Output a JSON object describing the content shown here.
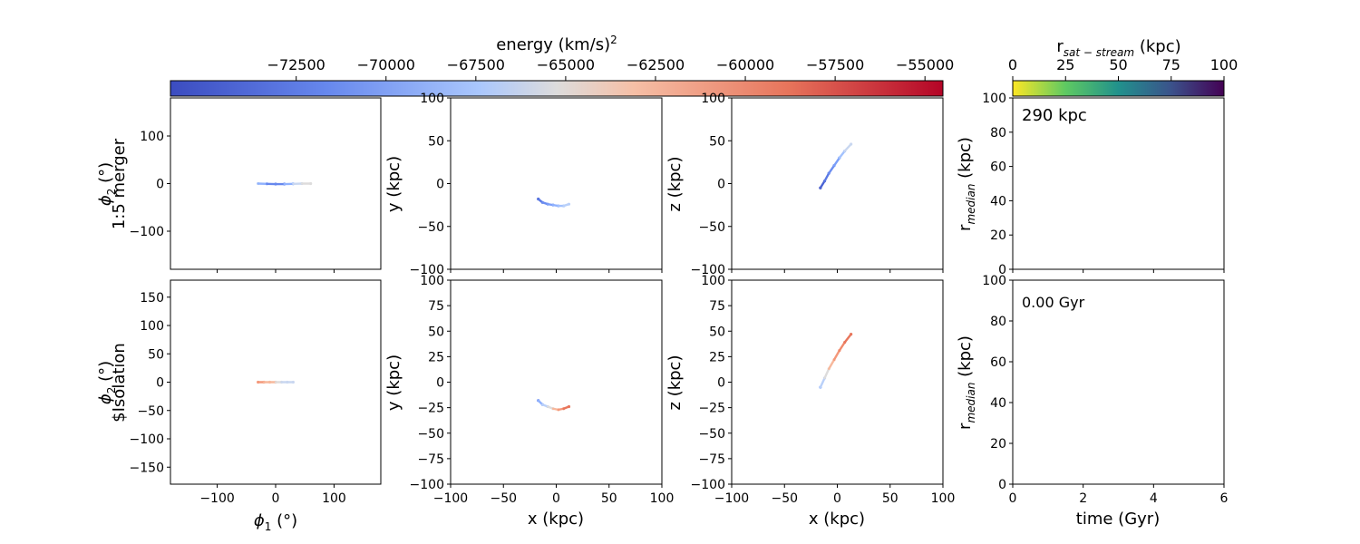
{
  "energy_colorbar": {
    "label": "energy (km/s)",
    "label_sup": "2",
    "range": [
      -76000,
      -54500
    ],
    "ticks": [
      "−72500",
      "−70000",
      "−67500",
      "−65000",
      "−62500",
      "−60000",
      "−57500",
      "−55000"
    ],
    "tick_values": [
      -72500,
      -70000,
      -67500,
      -65000,
      -62500,
      -60000,
      -57500,
      -55000
    ],
    "colormap": "coolwarm"
  },
  "rsat_colorbar": {
    "label_main": "r",
    "label_sub": "sat − stream",
    "label_unit": " (kpc)",
    "range": [
      0,
      100
    ],
    "ticks": [
      "0",
      "25",
      "50",
      "75",
      "100"
    ],
    "tick_values": [
      0,
      25,
      50,
      75,
      100
    ],
    "colormap": "viridis_r"
  },
  "rows": [
    {
      "row_label": "1:5 merger",
      "radius_annotation": "290 kpc",
      "xy_y_ticks": [
        "100",
        "50",
        "0",
        "−50",
        "−100"
      ],
      "xz_y_ticks": [
        "100",
        "50",
        "0",
        "−50",
        "−100"
      ]
    },
    {
      "row_label": "$Isolation",
      "time_annotation": "0.00 Gyr",
      "phi_y_ticks": [
        "150",
        "100",
        "50",
        "0",
        "−50",
        "−100",
        "−150"
      ],
      "xy_y_ticks": [
        "100",
        "75",
        "50",
        "25",
        "0",
        "−25",
        "−50",
        "−75",
        "−100"
      ],
      "xz_y_ticks": [
        "100",
        "75",
        "50",
        "25",
        "0",
        "−25",
        "−50",
        "−75",
        "−100"
      ]
    }
  ],
  "labels": {
    "phi2": "ϕ",
    "phi2_sub": "2",
    "phi2_unit": " (°)",
    "phi1": "ϕ",
    "phi1_sub": "1",
    "phi1_unit": " (°)",
    "y_kpc": "y (kpc)",
    "z_kpc": "z (kpc)",
    "x_kpc": "x (kpc)",
    "rmedian": "r",
    "rmedian_sub": "median",
    "rmedian_unit": " (kpc)",
    "time": "time (Gyr)"
  },
  "axis_ticks": {
    "phi1_x": [
      "−100",
      "0",
      "100"
    ],
    "phi1_x_values": [
      -100,
      0,
      100
    ],
    "phi2_top_y": [
      "100",
      "0",
      "−100"
    ],
    "phi2_top_y_values": [
      100,
      0,
      -100
    ],
    "kpc_x": [
      "−100",
      "−50",
      "0",
      "50",
      "100"
    ],
    "kpc_x_values": [
      -100,
      -50,
      0,
      50,
      100
    ],
    "rmed_y": [
      "100",
      "80",
      "60",
      "40",
      "20",
      "0"
    ],
    "rmed_y_values": [
      100,
      80,
      60,
      40,
      20,
      0
    ],
    "time_x": [
      "0",
      "2",
      "4",
      "6"
    ],
    "time_x_values": [
      0,
      2,
      4,
      6
    ]
  },
  "chart_data": [
    {
      "type": "scatter",
      "panel": "1:5 merger, phi1-phi2",
      "xlim": [
        -180,
        180
      ],
      "ylim": [
        -180,
        180
      ],
      "series": [
        {
          "color_by": "energy",
          "x": [
            -30,
            -15,
            0,
            15,
            30,
            45,
            60
          ],
          "y": [
            0,
            -0.5,
            -1,
            -1,
            -0.5,
            0,
            0
          ],
          "colors": [
            "#c9d7f0",
            "#8fb1fe",
            "#6687ed",
            "#6687ed",
            "#8fb1fe",
            "#c9d7f0",
            "#dddcdc"
          ]
        }
      ]
    },
    {
      "type": "scatter",
      "panel": "1:5 merger, x-y",
      "xlim": [
        -100,
        100
      ],
      "ylim": [
        -100,
        100
      ],
      "series": [
        {
          "color_by": "energy",
          "x": [
            -17,
            -13,
            -8,
            -3,
            2,
            7,
            12
          ],
          "y": [
            -18,
            -22,
            -24,
            -25,
            -26,
            -26,
            -24
          ],
          "colors": [
            "#4a63d3",
            "#5a78e4",
            "#6b8df0",
            "#7b9ff9",
            "#8fb1fe",
            "#a3c2fe",
            "#b9d0f9"
          ]
        }
      ]
    },
    {
      "type": "scatter",
      "panel": "1:5 merger, x-z",
      "xlim": [
        -100,
        100
      ],
      "ylim": [
        -100,
        100
      ],
      "series": [
        {
          "color_by": "energy",
          "x": [
            -16,
            -12,
            -8,
            -3,
            2,
            7,
            13
          ],
          "y": [
            -5,
            3,
            12,
            21,
            30,
            38,
            46
          ],
          "colors": [
            "#3b4cc0",
            "#4a63d3",
            "#5a78e4",
            "#6b8df0",
            "#7b9ff9",
            "#a3c2fe",
            "#c9d7f0"
          ]
        }
      ]
    },
    {
      "type": "line",
      "panel": "1:5 merger, r_median vs time",
      "xlim": [
        0,
        6
      ],
      "ylim": [
        0,
        100
      ],
      "series": []
    },
    {
      "type": "scatter",
      "panel": "$Isolation, phi1-phi2",
      "xlim": [
        -180,
        180
      ],
      "ylim": [
        -180,
        180
      ],
      "series": [
        {
          "color_by": "energy",
          "x": [
            -30,
            -20,
            -10,
            0,
            10,
            20,
            30
          ],
          "y": [
            0,
            0,
            0,
            0,
            0,
            0,
            0
          ],
          "colors": [
            "#f4987a",
            "#f4987a",
            "#f7b89c",
            "#f7b89c",
            "#dddcdc",
            "#c9d7f0",
            "#c9d7f0"
          ]
        }
      ]
    },
    {
      "type": "scatter",
      "panel": "$Isolation, x-y",
      "xlim": [
        -100,
        100
      ],
      "ylim": [
        -100,
        100
      ],
      "series": [
        {
          "color_by": "energy",
          "x": [
            -17,
            -13,
            -8,
            -3,
            2,
            7,
            12
          ],
          "y": [
            -18,
            -22,
            -24,
            -26,
            -27,
            -26,
            -24
          ],
          "colors": [
            "#6b8df0",
            "#8fb1fe",
            "#b9d0f9",
            "#dddcdc",
            "#f7b89c",
            "#f4987a",
            "#e8765c"
          ]
        }
      ]
    },
    {
      "type": "scatter",
      "panel": "$Isolation, x-z",
      "xlim": [
        -100,
        100
      ],
      "ylim": [
        -100,
        100
      ],
      "series": [
        {
          "color_by": "energy",
          "x": [
            -16,
            -12,
            -8,
            -3,
            2,
            7,
            13
          ],
          "y": [
            -5,
            4,
            13,
            22,
            31,
            39,
            47
          ],
          "colors": [
            "#8fb1fe",
            "#b9d0f9",
            "#dddcdc",
            "#f7b89c",
            "#f4987a",
            "#f08a6c",
            "#e8765c"
          ]
        }
      ]
    },
    {
      "type": "line",
      "panel": "$Isolation, r_median vs time",
      "xlim": [
        0,
        6
      ],
      "ylim": [
        0,
        100
      ],
      "series": []
    }
  ]
}
